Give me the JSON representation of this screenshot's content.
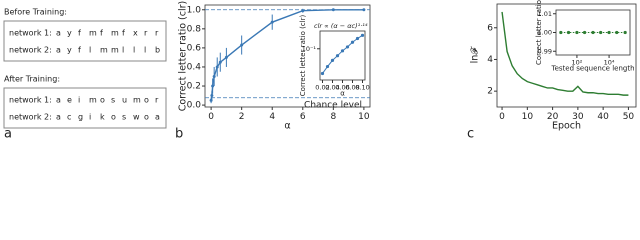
{
  "panel_a": {
    "label": "a",
    "before_title": "Before Training:",
    "after_title": "After Training:",
    "before": [
      {
        "name": "network 1:",
        "letters": [
          "a",
          "y",
          "f",
          "m",
          "f",
          "m",
          "f",
          "x",
          "r",
          "r"
        ]
      },
      {
        "name": "network 2:",
        "letters": [
          "a",
          "y",
          "f",
          "l",
          "m",
          "m",
          "l",
          "l",
          "l",
          "b"
        ]
      }
    ],
    "after": [
      {
        "name": "network 1:",
        "letters": [
          "a",
          "e",
          "i",
          "m",
          "o",
          "s",
          "u",
          "m",
          "o",
          "r"
        ]
      },
      {
        "name": "network 2:",
        "letters": [
          "a",
          "c",
          "g",
          "i",
          "k",
          "o",
          "s",
          "w",
          "o",
          "a"
        ]
      }
    ]
  },
  "chart_data": [
    {
      "type": "line",
      "panel_label": "b",
      "xlabel": "α",
      "ylabel": "Correct letter ratio (clr)",
      "xlim": [
        -0.4,
        10.4
      ],
      "ylim": [
        -0.02,
        1.05
      ],
      "xticks": [
        0,
        2,
        4,
        6,
        8,
        10
      ],
      "yticks": [
        {
          "value": 0,
          "label": "0.0"
        },
        0.2,
        0.4,
        0.6,
        0.8,
        {
          "value": 1,
          "label": "1.0"
        }
      ],
      "reference_lines": [
        {
          "value": 1.0
        },
        {
          "value": 0.077,
          "label": "Chance level"
        }
      ],
      "series": [
        {
          "color": "#3a78b5",
          "x": [
            0,
            0.05,
            0.1,
            0.2,
            0.4,
            0.6,
            1,
            2,
            4,
            6,
            8,
            10
          ],
          "values": [
            0.05,
            0.1,
            0.2,
            0.3,
            0.4,
            0.45,
            0.5,
            0.63,
            0.87,
            0.99,
            1.0,
            1.0
          ],
          "errors": [
            0.03,
            0.05,
            0.08,
            0.1,
            0.1,
            0.1,
            0.1,
            0.1,
            0.08,
            0.02,
            0,
            0
          ]
        }
      ]
    },
    {
      "type": "line",
      "xlabel": "α",
      "ylabel": "Correct letter ratio (clr)",
      "log_y": true,
      "annotation": "clr ∝ (α − αc)¹·¹⁴",
      "xlim": [
        0.015,
        0.105
      ],
      "ylim": [
        0.02,
        0.25
      ],
      "xticks": [
        0.02,
        0.04,
        0.06,
        0.08,
        {
          "value": 0.1,
          "label": "0.10"
        }
      ],
      "yticks": [
        {
          "value": 0.1,
          "label": "10⁻¹"
        }
      ],
      "series": [
        {
          "color": "#3a78b5",
          "x": [
            0.02,
            0.03,
            0.04,
            0.05,
            0.06,
            0.07,
            0.08,
            0.09,
            0.1
          ],
          "values": [
            0.028,
            0.04,
            0.055,
            0.07,
            0.09,
            0.11,
            0.14,
            0.17,
            0.2
          ]
        }
      ]
    },
    {
      "type": "line",
      "panel_label": "c",
      "xlabel": "Epoch",
      "ylabel": "ln𝓕",
      "xlim": [
        -2,
        53
      ],
      "ylim": [
        1,
        7.5
      ],
      "xticks": [
        0,
        10,
        20,
        30,
        40,
        50
      ],
      "yticks": [
        2,
        4,
        6
      ],
      "series": [
        {
          "color": "#2e7d32",
          "x": [
            0,
            2,
            4,
            6,
            8,
            10,
            12,
            14,
            16,
            18,
            20,
            22,
            24,
            26,
            28,
            30,
            32,
            34,
            36,
            38,
            40,
            42,
            44,
            46,
            48,
            50
          ],
          "values": [
            7.0,
            4.5,
            3.6,
            3.1,
            2.8,
            2.6,
            2.5,
            2.4,
            2.3,
            2.2,
            2.2,
            2.1,
            2.05,
            2.0,
            2.0,
            2.3,
            1.95,
            1.9,
            1.9,
            1.85,
            1.85,
            1.8,
            1.8,
            1.8,
            1.75,
            1.75
          ]
        }
      ]
    },
    {
      "type": "line",
      "xlabel": "Tested sequence length",
      "ylabel": "Correct letter ratio",
      "log_x": true,
      "xlim": [
        5,
        200000
      ],
      "ylim": [
        0.988,
        1.012
      ],
      "xticks": [
        {
          "value": 100,
          "label": "10²"
        },
        {
          "value": 10000,
          "label": "10⁴"
        }
      ],
      "yticks": [
        {
          "value": 0.99,
          "label": "0.99"
        },
        {
          "value": 1.0,
          "label": "1.00"
        },
        {
          "value": 1.01,
          "label": "1.01"
        }
      ],
      "series": [
        {
          "color": "#2e7d32",
          "dotted": true,
          "x": [
            10,
            30,
            100,
            300,
            1000,
            3000,
            10000,
            30000,
            100000
          ],
          "values": [
            1.0,
            1.0,
            1.0,
            1.0,
            1.0,
            1.0,
            1.0,
            1.0,
            1.0
          ]
        }
      ]
    }
  ]
}
